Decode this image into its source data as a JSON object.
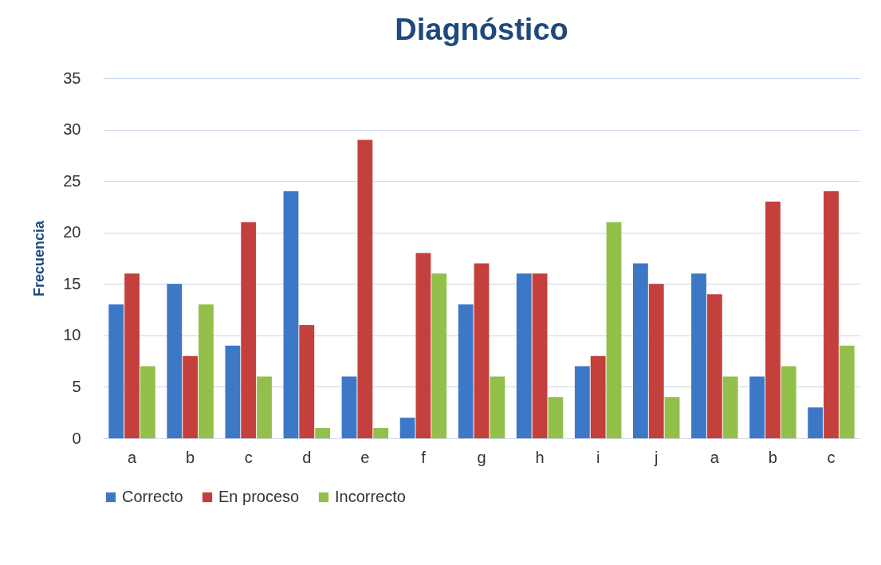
{
  "chart_data": {
    "type": "bar",
    "title": "Diagnóstico",
    "ylabel": "Frecuencia",
    "categories": [
      "a",
      "b",
      "c",
      "d",
      "e",
      "f",
      "g",
      "h",
      "i",
      "j",
      "a",
      "b",
      "c"
    ],
    "series": [
      {
        "name": "Correcto",
        "color": "#3d78c6",
        "values": [
          13,
          15,
          9,
          24,
          6,
          2,
          13,
          16,
          7,
          17,
          16,
          6,
          3
        ]
      },
      {
        "name": "En proceso",
        "color": "#c4403c",
        "values": [
          16,
          8,
          21,
          11,
          29,
          18,
          17,
          16,
          8,
          15,
          14,
          23,
          24
        ]
      },
      {
        "name": "Incorrecto",
        "color": "#92c04a",
        "values": [
          7,
          13,
          6,
          1,
          1,
          16,
          6,
          4,
          21,
          4,
          6,
          7,
          9
        ]
      }
    ],
    "ylim": [
      0,
      35
    ],
    "yticks": [
      0,
      5,
      10,
      15,
      20,
      25,
      30,
      35
    ],
    "grid": "y",
    "legend": "bottom"
  }
}
